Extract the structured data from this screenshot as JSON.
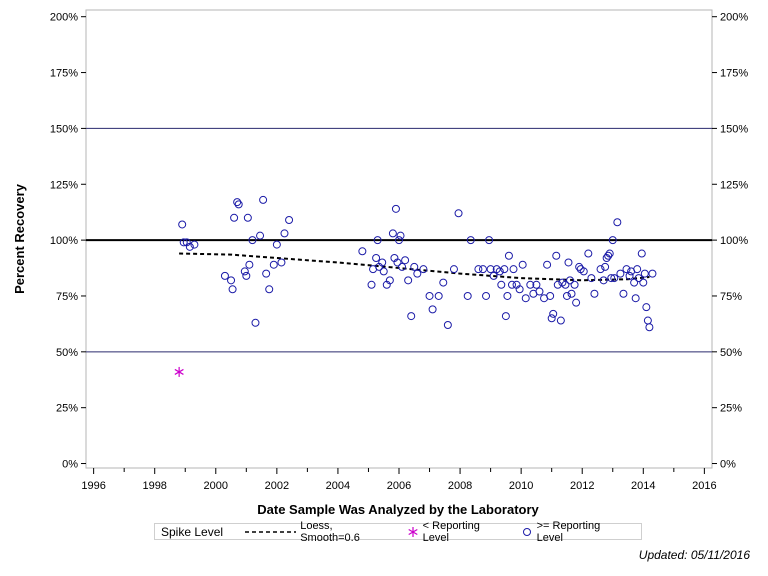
{
  "chart_data": {
    "type": "scatter",
    "title": "",
    "xlabel": "Date Sample Was Analyzed by the Laboratory",
    "ylabel": "Percent Recovery",
    "xlim": [
      1995.75,
      2016.25
    ],
    "ylim": [
      -2,
      203
    ],
    "x_ticks": [
      1996,
      1998,
      2000,
      2002,
      2004,
      2006,
      2008,
      2010,
      2012,
      2014,
      2016
    ],
    "y_ticks": [
      0,
      25,
      50,
      75,
      100,
      125,
      150,
      175,
      200
    ],
    "y_tick_labels": [
      "0%",
      "25%",
      "50%",
      "75%",
      "100%",
      "125%",
      "150%",
      "175%",
      "200%"
    ],
    "reference_lines": [
      {
        "y": 100,
        "style": "bold"
      },
      {
        "y": 50,
        "style": "thin"
      },
      {
        "y": 150,
        "style": "thin"
      }
    ],
    "grid": false,
    "legend_position": "bottom",
    "legend_title": "Spike Level",
    "series": [
      {
        "name": "Loess, Smooth=0.6",
        "kind": "line",
        "color": "#000000",
        "points": [
          [
            1998.8,
            94
          ],
          [
            2000.5,
            93.5
          ],
          [
            2002.0,
            92
          ],
          [
            2004.0,
            90
          ],
          [
            2006.0,
            87.5
          ],
          [
            2008.0,
            85
          ],
          [
            2010.0,
            83
          ],
          [
            2012.0,
            82
          ],
          [
            2013.5,
            82.5
          ],
          [
            2014.2,
            83.5
          ]
        ]
      },
      {
        "name": "< Reporting Level",
        "kind": "star",
        "color": "#cc00cc",
        "points": [
          [
            1998.8,
            41
          ]
        ]
      },
      {
        "name": ">= Reporting Level",
        "kind": "circle",
        "color": "#1c1ca8",
        "points": [
          [
            1998.9,
            107
          ],
          [
            1998.95,
            99
          ],
          [
            1999.05,
            99
          ],
          [
            1999.15,
            97
          ],
          [
            1999.3,
            98
          ],
          [
            2000.3,
            84
          ],
          [
            2000.5,
            82
          ],
          [
            2000.55,
            78
          ],
          [
            2000.6,
            110
          ],
          [
            2000.7,
            117
          ],
          [
            2000.75,
            116
          ],
          [
            2000.95,
            86
          ],
          [
            2001.0,
            84
          ],
          [
            2001.05,
            110
          ],
          [
            2001.1,
            89
          ],
          [
            2001.2,
            100
          ],
          [
            2001.3,
            63
          ],
          [
            2001.45,
            102
          ],
          [
            2001.55,
            118
          ],
          [
            2001.65,
            85
          ],
          [
            2001.75,
            78
          ],
          [
            2001.9,
            89
          ],
          [
            2002.0,
            98
          ],
          [
            2002.15,
            90
          ],
          [
            2002.25,
            103
          ],
          [
            2002.4,
            109
          ],
          [
            2004.8,
            95
          ],
          [
            2005.1,
            80
          ],
          [
            2005.15,
            87
          ],
          [
            2005.25,
            92
          ],
          [
            2005.3,
            100
          ],
          [
            2005.35,
            88
          ],
          [
            2005.45,
            90
          ],
          [
            2005.5,
            86
          ],
          [
            2005.6,
            80
          ],
          [
            2005.7,
            82
          ],
          [
            2005.8,
            103
          ],
          [
            2005.85,
            92
          ],
          [
            2005.9,
            114
          ],
          [
            2005.95,
            90
          ],
          [
            2006.0,
            100
          ],
          [
            2006.05,
            102
          ],
          [
            2006.1,
            88
          ],
          [
            2006.2,
            91
          ],
          [
            2006.3,
            82
          ],
          [
            2006.4,
            66
          ],
          [
            2006.5,
            88
          ],
          [
            2006.6,
            85
          ],
          [
            2006.8,
            87
          ],
          [
            2007.0,
            75
          ],
          [
            2007.1,
            69
          ],
          [
            2007.3,
            75
          ],
          [
            2007.45,
            81
          ],
          [
            2007.6,
            62
          ],
          [
            2007.8,
            87
          ],
          [
            2007.95,
            112
          ],
          [
            2008.25,
            75
          ],
          [
            2008.35,
            100
          ],
          [
            2008.6,
            87
          ],
          [
            2008.75,
            87
          ],
          [
            2008.85,
            75
          ],
          [
            2008.95,
            100
          ],
          [
            2009.0,
            87
          ],
          [
            2009.1,
            84
          ],
          [
            2009.2,
            87
          ],
          [
            2009.3,
            86
          ],
          [
            2009.35,
            80
          ],
          [
            2009.45,
            87
          ],
          [
            2009.5,
            66
          ],
          [
            2009.55,
            75
          ],
          [
            2009.6,
            93
          ],
          [
            2009.7,
            80
          ],
          [
            2009.75,
            87
          ],
          [
            2009.85,
            80
          ],
          [
            2009.95,
            78
          ],
          [
            2010.05,
            89
          ],
          [
            2010.15,
            74
          ],
          [
            2010.3,
            80
          ],
          [
            2010.4,
            76
          ],
          [
            2010.5,
            80
          ],
          [
            2010.6,
            77
          ],
          [
            2010.75,
            74
          ],
          [
            2010.85,
            89
          ],
          [
            2010.95,
            75
          ],
          [
            2011.0,
            65
          ],
          [
            2011.05,
            67
          ],
          [
            2011.15,
            93
          ],
          [
            2011.2,
            80
          ],
          [
            2011.3,
            64
          ],
          [
            2011.35,
            81
          ],
          [
            2011.45,
            80
          ],
          [
            2011.5,
            75
          ],
          [
            2011.55,
            90
          ],
          [
            2011.6,
            82
          ],
          [
            2011.65,
            76
          ],
          [
            2011.75,
            80
          ],
          [
            2011.8,
            72
          ],
          [
            2011.9,
            88
          ],
          [
            2011.95,
            87
          ],
          [
            2012.05,
            86
          ],
          [
            2012.2,
            94
          ],
          [
            2012.3,
            83
          ],
          [
            2012.4,
            76
          ],
          [
            2012.6,
            87
          ],
          [
            2012.7,
            82
          ],
          [
            2012.75,
            88
          ],
          [
            2012.8,
            92
          ],
          [
            2012.85,
            93
          ],
          [
            2012.9,
            94
          ],
          [
            2012.95,
            83
          ],
          [
            2013.0,
            100
          ],
          [
            2013.05,
            83
          ],
          [
            2013.15,
            108
          ],
          [
            2013.25,
            85
          ],
          [
            2013.35,
            76
          ],
          [
            2013.45,
            87
          ],
          [
            2013.55,
            84
          ],
          [
            2013.6,
            86
          ],
          [
            2013.7,
            81
          ],
          [
            2013.75,
            74
          ],
          [
            2013.8,
            87
          ],
          [
            2013.85,
            83
          ],
          [
            2013.95,
            94
          ],
          [
            2014.0,
            81
          ],
          [
            2014.05,
            85
          ],
          [
            2014.1,
            70
          ],
          [
            2014.15,
            64
          ],
          [
            2014.2,
            61
          ],
          [
            2014.3,
            85
          ]
        ]
      }
    ]
  },
  "footer": {
    "updated": "Updated: 05/11/2016"
  }
}
